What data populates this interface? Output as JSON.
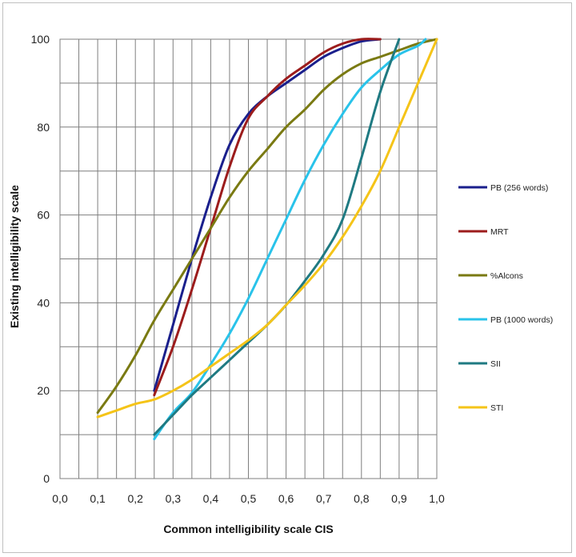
{
  "chart_data": {
    "type": "line",
    "title": "",
    "xlabel": "Common intelligibility scale CIS",
    "ylabel": "Existing intelligibility scale",
    "xlim": [
      0,
      1
    ],
    "ylim": [
      0,
      100
    ],
    "x_ticks": [
      "0,0",
      "0,1",
      "0,2",
      "0,3",
      "0,4",
      "0,5",
      "0,6",
      "0,7",
      "0,8",
      "0,9",
      "1,0"
    ],
    "y_ticks": [
      "0",
      "20",
      "40",
      "60",
      "80",
      "100"
    ],
    "grid": true,
    "legend_position": "right",
    "series": [
      {
        "name": "PB (256 words)",
        "color": "#1a1f8c",
        "points": [
          [
            0.25,
            20
          ],
          [
            0.3,
            35
          ],
          [
            0.35,
            50
          ],
          [
            0.4,
            64
          ],
          [
            0.45,
            76
          ],
          [
            0.5,
            83
          ],
          [
            0.55,
            87
          ],
          [
            0.6,
            90
          ],
          [
            0.65,
            93
          ],
          [
            0.7,
            96
          ],
          [
            0.75,
            98
          ],
          [
            0.8,
            99.5
          ],
          [
            0.85,
            100
          ]
        ]
      },
      {
        "name": "MRT",
        "color": "#9c1c1c",
        "points": [
          [
            0.25,
            19
          ],
          [
            0.3,
            30
          ],
          [
            0.35,
            43
          ],
          [
            0.4,
            57
          ],
          [
            0.45,
            71
          ],
          [
            0.5,
            82
          ],
          [
            0.55,
            87
          ],
          [
            0.6,
            91
          ],
          [
            0.65,
            94
          ],
          [
            0.7,
            97
          ],
          [
            0.75,
            99
          ],
          [
            0.8,
            100
          ],
          [
            0.85,
            100
          ]
        ]
      },
      {
        "name": "%Alcons",
        "color": "#7a7a12",
        "points": [
          [
            0.1,
            15
          ],
          [
            0.15,
            21
          ],
          [
            0.2,
            28
          ],
          [
            0.25,
            36
          ],
          [
            0.3,
            43
          ],
          [
            0.35,
            50
          ],
          [
            0.4,
            57
          ],
          [
            0.45,
            64
          ],
          [
            0.5,
            70
          ],
          [
            0.55,
            75
          ],
          [
            0.6,
            80
          ],
          [
            0.65,
            84
          ],
          [
            0.7,
            88.5
          ],
          [
            0.75,
            92
          ],
          [
            0.8,
            94.5
          ],
          [
            0.85,
            96
          ],
          [
            0.9,
            97.5
          ],
          [
            0.95,
            99
          ],
          [
            1.0,
            100
          ]
        ]
      },
      {
        "name": "PB (1000 words)",
        "color": "#29c3ea",
        "points": [
          [
            0.25,
            9
          ],
          [
            0.3,
            15
          ],
          [
            0.35,
            19.5
          ],
          [
            0.4,
            26
          ],
          [
            0.45,
            33
          ],
          [
            0.5,
            41
          ],
          [
            0.55,
            50
          ],
          [
            0.6,
            59
          ],
          [
            0.65,
            68
          ],
          [
            0.7,
            76
          ],
          [
            0.75,
            83
          ],
          [
            0.8,
            89
          ],
          [
            0.85,
            93
          ],
          [
            0.9,
            96.5
          ],
          [
            0.95,
            98.5
          ],
          [
            0.97,
            100
          ]
        ]
      },
      {
        "name": "SII",
        "color": "#1f7a82",
        "points": [
          [
            0.25,
            10
          ],
          [
            0.3,
            14.5
          ],
          [
            0.35,
            19
          ],
          [
            0.4,
            23
          ],
          [
            0.45,
            27
          ],
          [
            0.5,
            31
          ],
          [
            0.55,
            35
          ],
          [
            0.6,
            39.5
          ],
          [
            0.65,
            45
          ],
          [
            0.7,
            51
          ],
          [
            0.75,
            59
          ],
          [
            0.8,
            73
          ],
          [
            0.85,
            88
          ],
          [
            0.9,
            100
          ]
        ]
      },
      {
        "name": "STI",
        "color": "#f5c418",
        "points": [
          [
            0.1,
            14
          ],
          [
            0.15,
            15.5
          ],
          [
            0.2,
            17
          ],
          [
            0.25,
            18
          ],
          [
            0.3,
            20
          ],
          [
            0.35,
            22.5
          ],
          [
            0.4,
            25.5
          ],
          [
            0.45,
            28.5
          ],
          [
            0.5,
            31.5
          ],
          [
            0.55,
            35
          ],
          [
            0.6,
            39.5
          ],
          [
            0.65,
            44
          ],
          [
            0.7,
            49
          ],
          [
            0.75,
            55
          ],
          [
            0.8,
            62
          ],
          [
            0.85,
            70
          ],
          [
            0.9,
            80
          ],
          [
            0.95,
            90
          ],
          [
            1.0,
            100
          ]
        ]
      }
    ]
  }
}
